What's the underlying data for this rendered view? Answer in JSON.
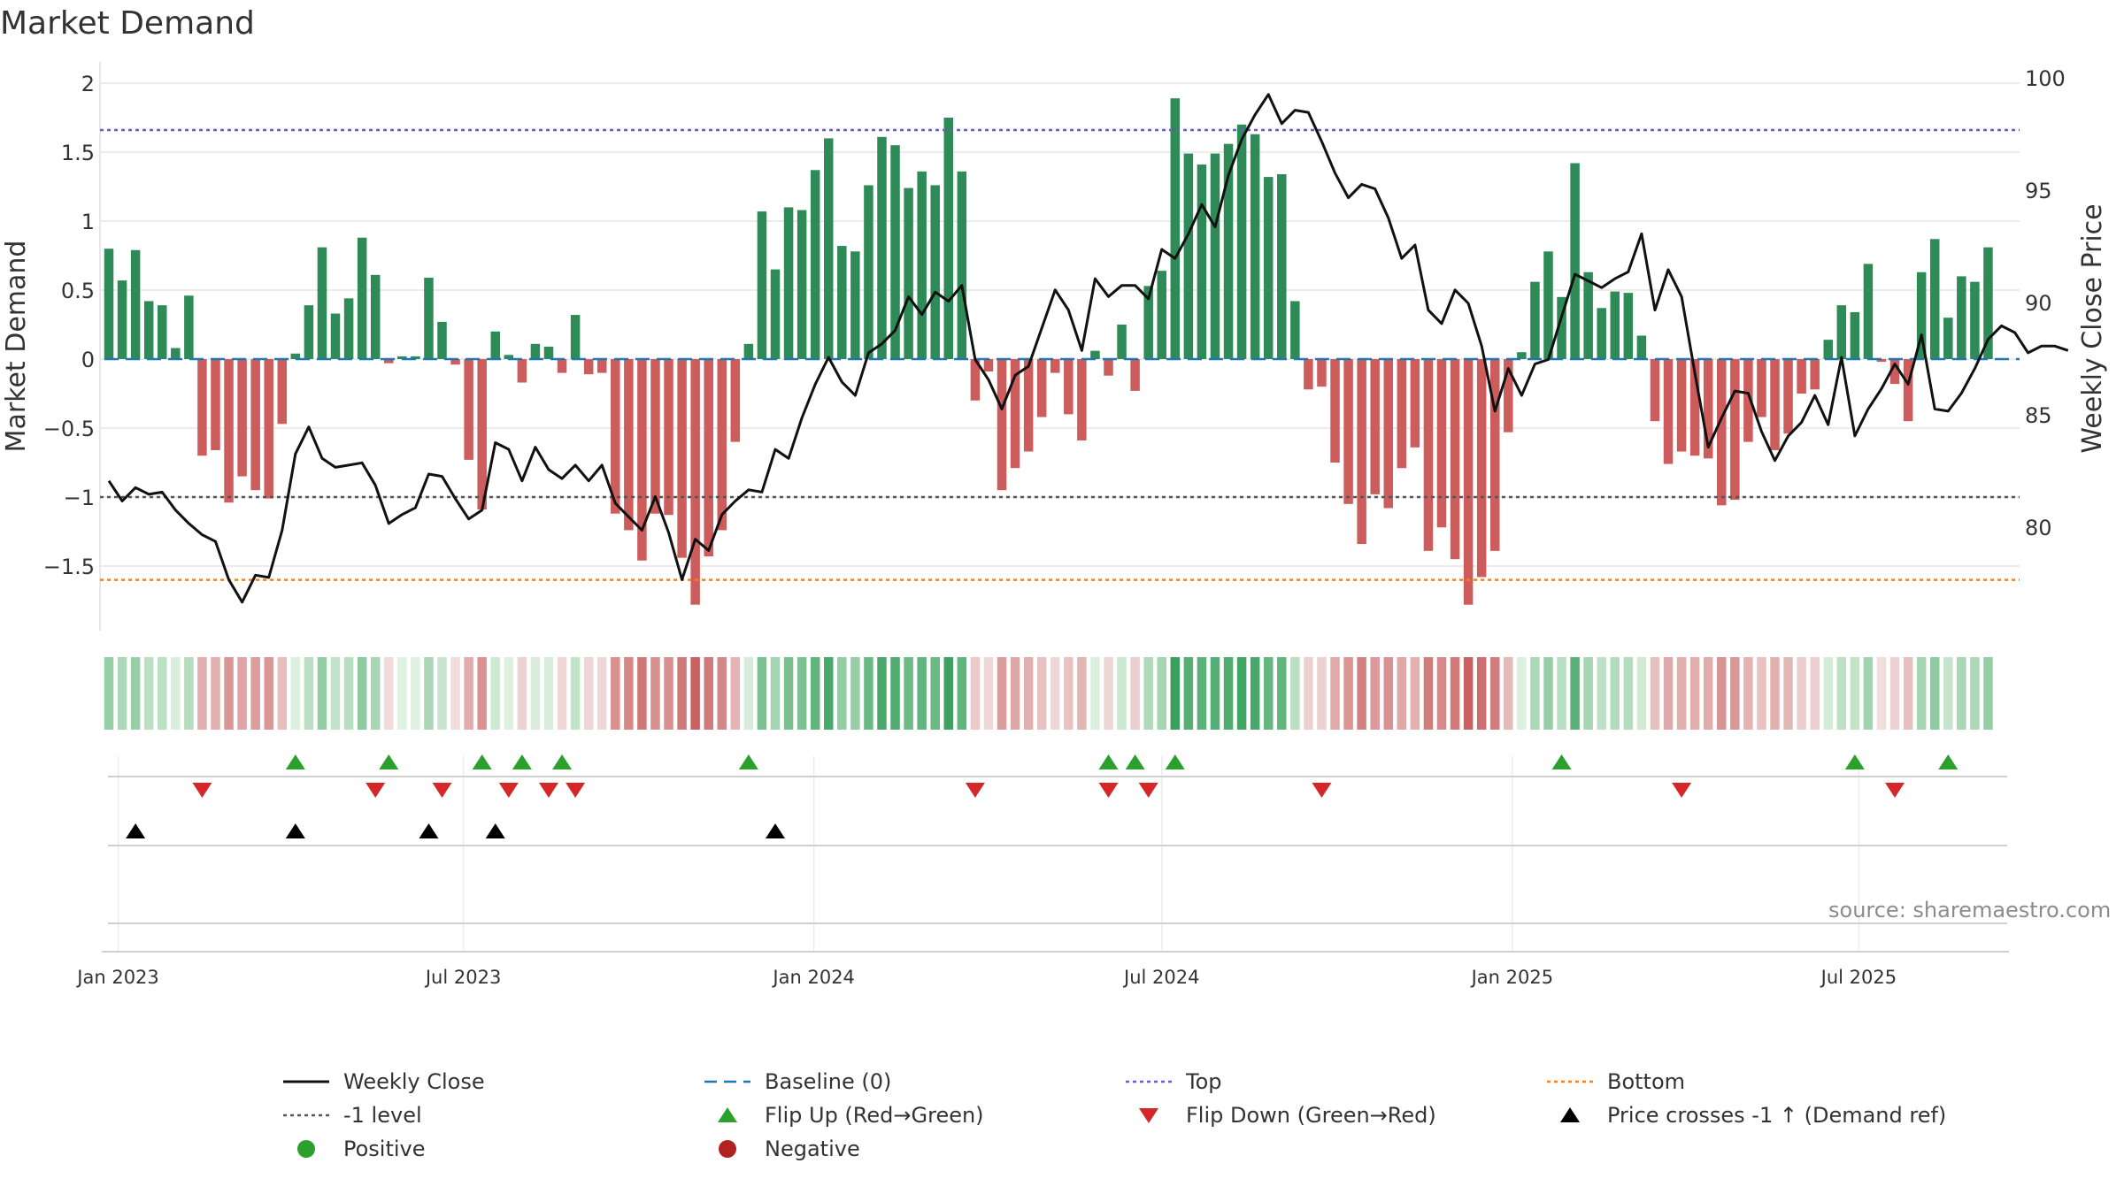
{
  "title": "Market Demand",
  "source": "source: sharemaestro.com",
  "colors": {
    "positive": "#2e8b57",
    "negative": "#cd5c5c",
    "price": "#111111",
    "baseline": "#1f77b4",
    "top": "#6a5acd",
    "bottom": "#ff7f0e",
    "neg_level": "#555555",
    "flip_up": "#2ca02c",
    "flip_down": "#d62728",
    "cross": "#000000",
    "grid": "#e6e6e6"
  },
  "chart_data": {
    "type": "bar",
    "title": "Market Demand",
    "ylabel_left": "Market Demand",
    "ylabel_right": "Weekly Close Price",
    "ylim_left": [
      -1.97,
      2.1
    ],
    "yticks_left": [
      2,
      1.5,
      1,
      0.5,
      0,
      -0.5,
      -1,
      -1.5
    ],
    "yticks_left_labels": [
      "2",
      "1.5",
      "1",
      "0.5",
      "0",
      "−0.5",
      "−1",
      "−1.5"
    ],
    "ylim_right": [
      75.5,
      101.5
    ],
    "yticks_right": [
      100,
      95,
      90,
      85,
      80
    ],
    "xtick_labels": [
      "Jan 2023",
      "Jul 2023",
      "Jan 2024",
      "Jul 2024",
      "Jan 2025",
      "Jul 2025"
    ],
    "xtick_weeks": [
      0.7,
      26.6,
      52.9,
      79,
      105.3,
      131.3
    ],
    "reference_lines": {
      "top": 1.66,
      "bottom": -1.6,
      "neg_level": -1.0,
      "baseline": 0
    },
    "demand": [
      0.8,
      0.57,
      0.79,
      0.42,
      0.39,
      0.08,
      0.46,
      -0.7,
      -0.66,
      -1.04,
      -0.85,
      -0.95,
      -1.01,
      -0.47,
      0.04,
      0.39,
      0.81,
      0.33,
      0.44,
      0.88,
      0.61,
      -0.03,
      0.02,
      0.02,
      0.59,
      0.27,
      -0.04,
      -0.73,
      -1.09,
      0.2,
      0.03,
      -0.17,
      0.11,
      0.09,
      -0.1,
      0.32,
      -0.11,
      -0.1,
      -1.12,
      -1.24,
      -1.46,
      -1.12,
      -1.13,
      -1.44,
      -1.78,
      -1.43,
      -1.24,
      -0.6,
      0.11,
      1.07,
      0.65,
      1.1,
      1.08,
      1.37,
      1.6,
      0.82,
      0.78,
      1.26,
      1.61,
      1.55,
      1.24,
      1.36,
      1.26,
      1.75,
      1.36,
      -0.3,
      -0.09,
      -0.95,
      -0.79,
      -0.67,
      -0.42,
      -0.1,
      -0.4,
      -0.59,
      0.06,
      -0.12,
      0.25,
      -0.23,
      0.53,
      0.64,
      1.89,
      1.49,
      1.41,
      1.49,
      1.56,
      1.7,
      1.63,
      1.32,
      1.34,
      0.42,
      -0.22,
      -0.2,
      -0.75,
      -1.05,
      -1.34,
      -0.98,
      -1.08,
      -0.79,
      -0.64,
      -1.39,
      -1.22,
      -1.45,
      -1.78,
      -1.58,
      -1.39,
      -0.53,
      0.05,
      0.56,
      0.78,
      0.45,
      1.42,
      0.63,
      0.37,
      0.49,
      0.48,
      0.17,
      -0.45,
      -0.76,
      -0.67,
      -0.7,
      -0.72,
      -1.06,
      -1.02,
      -0.6,
      -0.42,
      -0.66,
      -0.54,
      -0.25,
      -0.22,
      0.14,
      0.39,
      0.34,
      0.69,
      -0.02,
      -0.18,
      -0.45,
      0.63,
      0.87,
      0.3,
      0.6,
      0.56,
      0.81
    ],
    "price": [
      82.1,
      81.2,
      81.8,
      81.5,
      81.6,
      80.8,
      80.2,
      79.7,
      79.4,
      77.7,
      76.7,
      77.9,
      77.8,
      79.9,
      83.3,
      84.5,
      83.1,
      82.7,
      82.8,
      82.9,
      81.9,
      80.2,
      80.6,
      80.9,
      82.4,
      82.3,
      81.3,
      80.4,
      80.8,
      83.8,
      83.5,
      82.1,
      83.6,
      82.6,
      82.2,
      82.8,
      82.1,
      82.8,
      81.1,
      80.5,
      79.9,
      81.4,
      79.8,
      77.7,
      79.5,
      79.0,
      80.6,
      81.2,
      81.7,
      81.6,
      83.5,
      83.1,
      84.9,
      86.4,
      87.6,
      86.5,
      85.9,
      87.8,
      88.2,
      88.8,
      90.3,
      89.5,
      90.5,
      90.1,
      90.8,
      87.5,
      86.6,
      85.3,
      86.8,
      87.2,
      88.9,
      90.6,
      89.7,
      87.9,
      91.1,
      90.3,
      90.8,
      90.8,
      90.2,
      92.4,
      92.0,
      93.1,
      94.4,
      93.4,
      95.7,
      97.3,
      98.4,
      99.3,
      98.0,
      98.6,
      98.5,
      97.2,
      95.8,
      94.7,
      95.3,
      95.1,
      93.8,
      92.0,
      92.6,
      89.7,
      89.1,
      90.6,
      90.0,
      88.1,
      85.2,
      87.1,
      85.9,
      87.3,
      87.5,
      89.4,
      91.3,
      91.0,
      90.7,
      91.1,
      91.4,
      93.1,
      89.7,
      91.5,
      90.3,
      86.9,
      83.6,
      84.9,
      86.1,
      86.0,
      84.3,
      83.0,
      84.1,
      84.7,
      85.9,
      84.6,
      87.6,
      84.1,
      85.3,
      86.2,
      87.3,
      86.4,
      88.6,
      85.3,
      85.2,
      86.0,
      87.1,
      88.4,
      89.0,
      88.7,
      87.8,
      88.1,
      88.1,
      87.9
    ]
  },
  "strip_ticks": [
    "Jan 2023",
    "Jul 2023",
    "Jan 2024",
    "Jul 2024",
    "Jan 2025",
    "Jul 2025"
  ],
  "flip_up_weeks": [
    14,
    21,
    28,
    31,
    34,
    48,
    75,
    77,
    80,
    109,
    131,
    138
  ],
  "flip_down_weeks": [
    7,
    20,
    25,
    30,
    33,
    35,
    65,
    75,
    78,
    91,
    118,
    134
  ],
  "cross_weeks": [
    2,
    14,
    24,
    29,
    50
  ],
  "legend": [
    {
      "label": "Weekly Close",
      "kind": "line",
      "color": "#111111"
    },
    {
      "label": "Baseline (0)",
      "kind": "dash",
      "color": "#1f77b4"
    },
    {
      "label": "Top",
      "kind": "dot",
      "color": "#6a5acd"
    },
    {
      "label": "Bottom",
      "kind": "dot",
      "color": "#ff7f0e"
    },
    {
      "label": "-1 level",
      "kind": "dot",
      "color": "#555555"
    },
    {
      "label": "Flip Up (Red→Green)",
      "kind": "tri-up",
      "color": "#2ca02c"
    },
    {
      "label": "Flip Down (Green→Red)",
      "kind": "tri-down",
      "color": "#d62728"
    },
    {
      "label": "Price crosses -1 ↑ (Demand ref)",
      "kind": "tri-up",
      "color": "#000000"
    },
    {
      "label": "Positive",
      "kind": "circle",
      "color": "#2ca02c"
    },
    {
      "label": "Negative",
      "kind": "circle",
      "color": "#b22222"
    }
  ]
}
